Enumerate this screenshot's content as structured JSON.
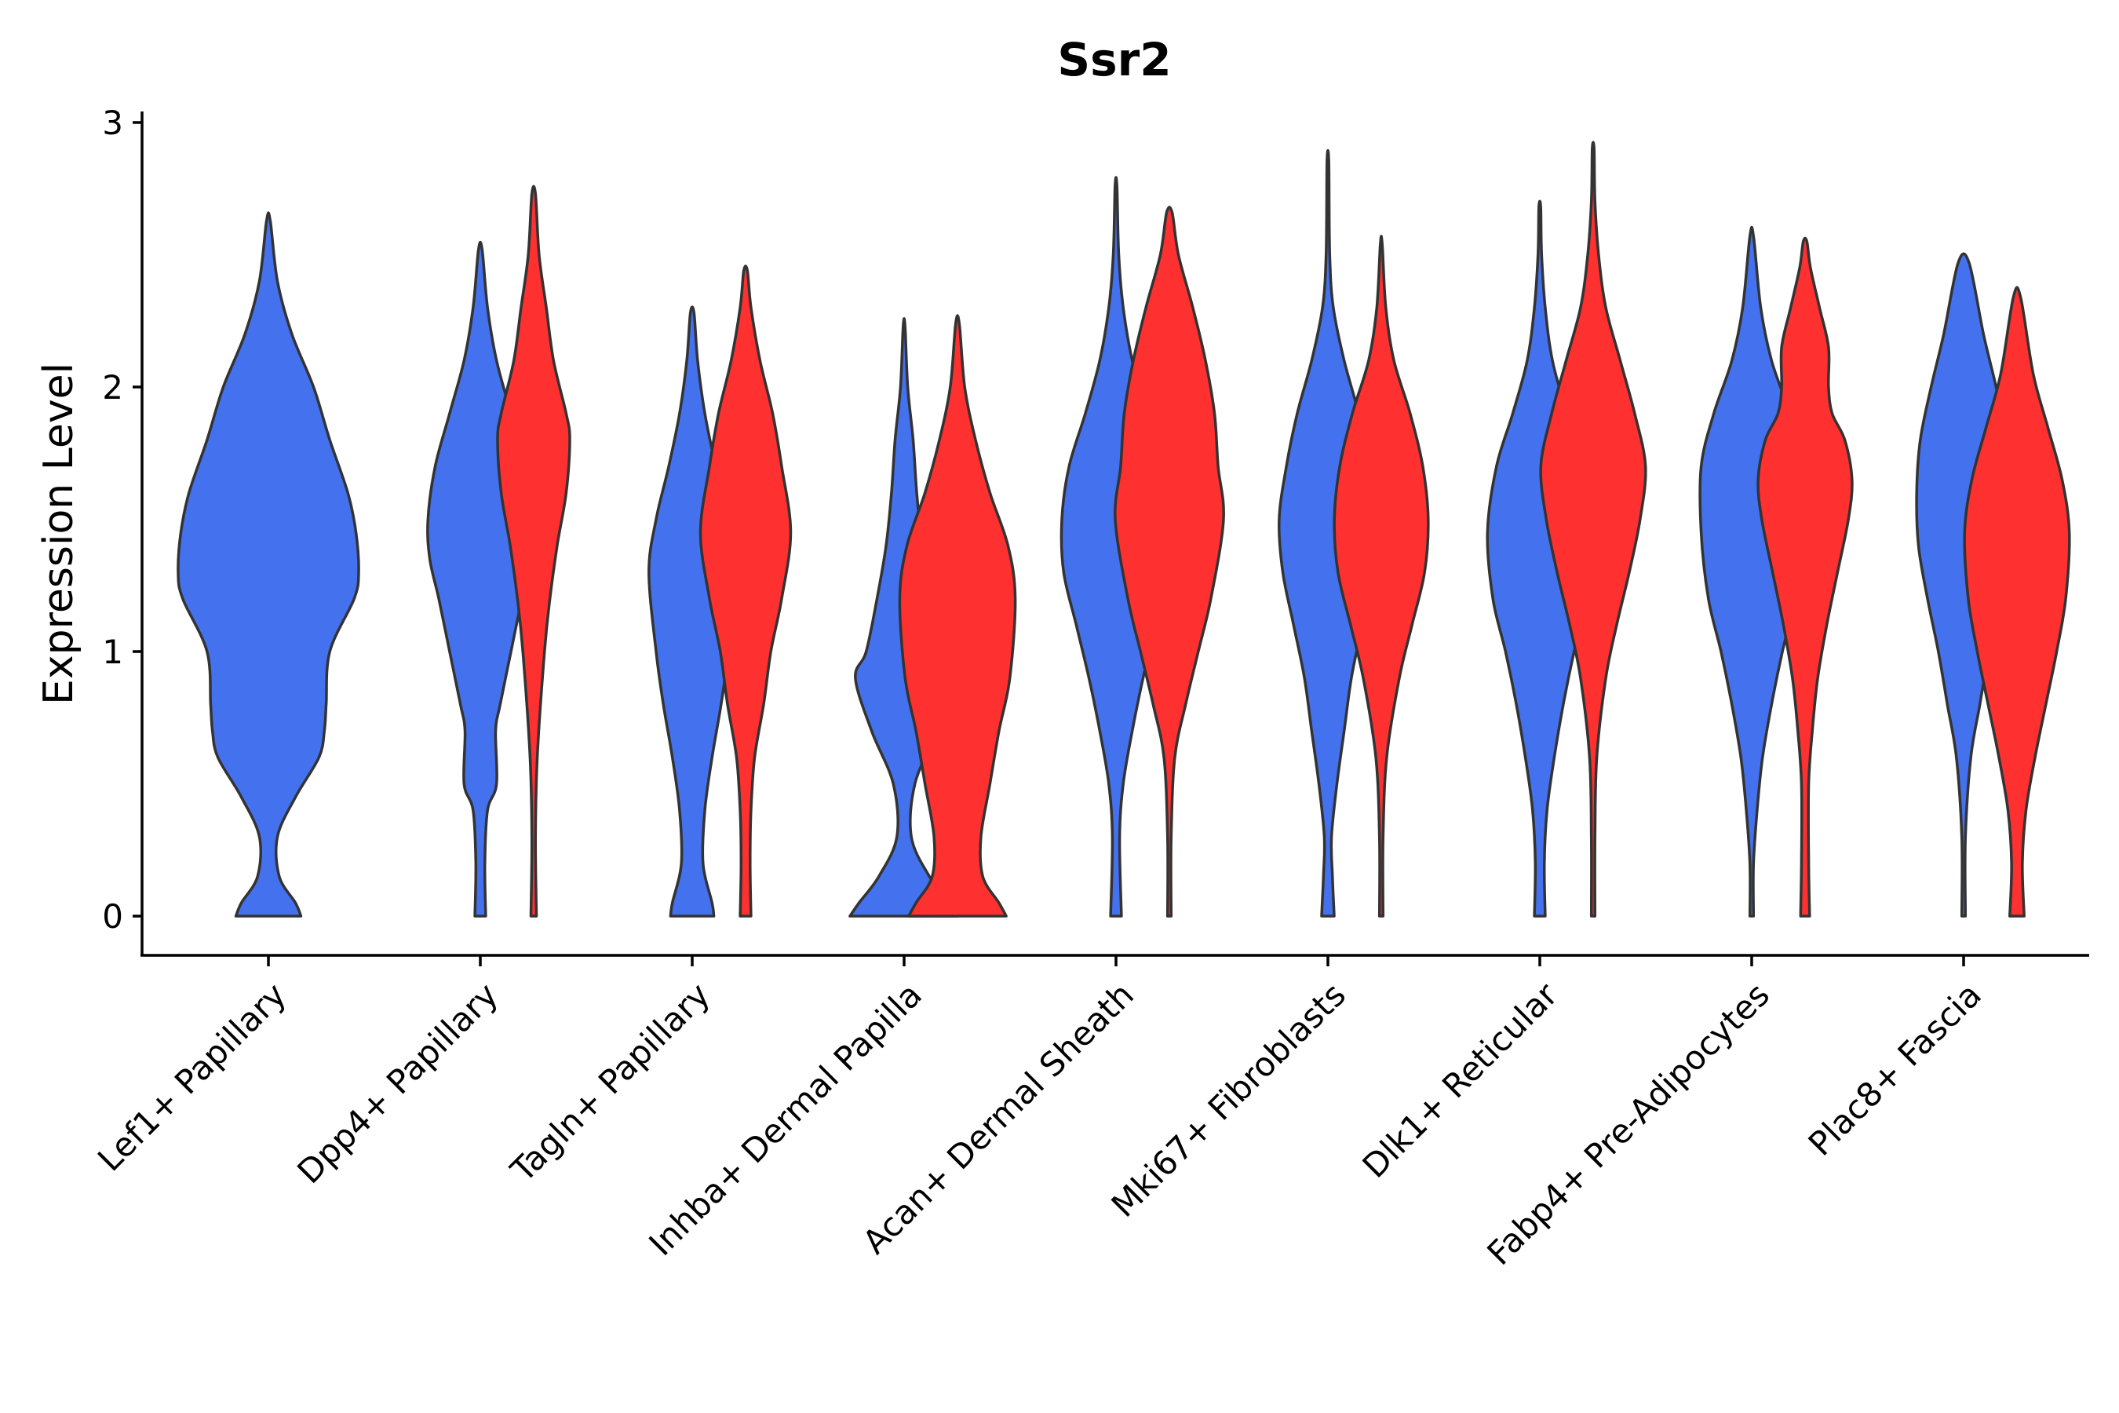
{
  "chart_data": {
    "type": "violin",
    "title": "Ssr2",
    "xlabel": "",
    "ylabel": "Expression Level",
    "ylim": [
      -0.15,
      3.05
    ],
    "yticks": [
      0,
      1,
      2,
      3
    ],
    "colors": {
      "group_a": "#4472EE",
      "group_b": "#FF3030"
    },
    "categories": [
      "Lef1+ Papillary",
      "Dpp4+ Papillary",
      "Tagln+ Papillary",
      "Inhba+ Dermal Papilla",
      "Acan+ Dermal Sheath",
      "Mki67+ Fibroblasts",
      "Dlk1+ Reticular",
      "Fabp4+ Pre-Adipocytes",
      "Plac8+ Fascia"
    ],
    "violins": [
      {
        "category_index": 0,
        "group": "group_a",
        "ymax": 2.63,
        "profile": [
          [
            0,
            0.36
          ],
          [
            0.05,
            0.3
          ],
          [
            0.15,
            0.12
          ],
          [
            0.3,
            0.1
          ],
          [
            0.45,
            0.3
          ],
          [
            0.6,
            0.56
          ],
          [
            0.7,
            0.62
          ],
          [
            0.8,
            0.64
          ],
          [
            1.0,
            0.68
          ],
          [
            1.2,
            0.95
          ],
          [
            1.3,
            1.0
          ],
          [
            1.45,
            0.97
          ],
          [
            1.6,
            0.88
          ],
          [
            1.8,
            0.68
          ],
          [
            2.0,
            0.5
          ],
          [
            2.2,
            0.26
          ],
          [
            2.4,
            0.1
          ],
          [
            2.63,
            0.02
          ]
        ]
      },
      {
        "category_index": 1,
        "group": "group_a",
        "ymax": 2.52,
        "profile": [
          [
            0,
            0.06
          ],
          [
            0.2,
            0.05
          ],
          [
            0.4,
            0.08
          ],
          [
            0.5,
            0.18
          ],
          [
            0.7,
            0.17
          ],
          [
            0.8,
            0.22
          ],
          [
            1.0,
            0.34
          ],
          [
            1.2,
            0.46
          ],
          [
            1.35,
            0.56
          ],
          [
            1.5,
            0.58
          ],
          [
            1.7,
            0.5
          ],
          [
            1.9,
            0.34
          ],
          [
            2.1,
            0.18
          ],
          [
            2.3,
            0.08
          ],
          [
            2.52,
            0.02
          ]
        ]
      },
      {
        "category_index": 1,
        "group": "group_b",
        "ymax": 2.73,
        "profile": [
          [
            0,
            0.03
          ],
          [
            0.3,
            0.02
          ],
          [
            0.6,
            0.04
          ],
          [
            1.0,
            0.12
          ],
          [
            1.2,
            0.18
          ],
          [
            1.4,
            0.26
          ],
          [
            1.6,
            0.36
          ],
          [
            1.8,
            0.4
          ],
          [
            1.9,
            0.36
          ],
          [
            2.1,
            0.22
          ],
          [
            2.3,
            0.14
          ],
          [
            2.5,
            0.06
          ],
          [
            2.73,
            0.02
          ]
        ]
      },
      {
        "category_index": 2,
        "group": "group_a",
        "ymax": 2.28,
        "profile": [
          [
            0,
            0.24
          ],
          [
            0.05,
            0.22
          ],
          [
            0.2,
            0.12
          ],
          [
            0.4,
            0.14
          ],
          [
            0.6,
            0.22
          ],
          [
            0.8,
            0.32
          ],
          [
            1.0,
            0.4
          ],
          [
            1.3,
            0.48
          ],
          [
            1.5,
            0.4
          ],
          [
            1.7,
            0.26
          ],
          [
            1.9,
            0.14
          ],
          [
            2.1,
            0.06
          ],
          [
            2.28,
            0.02
          ]
        ]
      },
      {
        "category_index": 2,
        "group": "group_b",
        "ymax": 2.44,
        "profile": [
          [
            0,
            0.06
          ],
          [
            0.2,
            0.05
          ],
          [
            0.4,
            0.06
          ],
          [
            0.6,
            0.1
          ],
          [
            0.8,
            0.2
          ],
          [
            1.0,
            0.28
          ],
          [
            1.2,
            0.4
          ],
          [
            1.45,
            0.5
          ],
          [
            1.7,
            0.4
          ],
          [
            1.9,
            0.3
          ],
          [
            2.1,
            0.16
          ],
          [
            2.3,
            0.06
          ],
          [
            2.44,
            0.02
          ]
        ]
      },
      {
        "category_index": 3,
        "group": "group_a",
        "ymax": 2.23,
        "profile": [
          [
            0,
            0.6
          ],
          [
            0.05,
            0.5
          ],
          [
            0.15,
            0.28
          ],
          [
            0.3,
            0.08
          ],
          [
            0.5,
            0.12
          ],
          [
            0.7,
            0.36
          ],
          [
            0.9,
            0.54
          ],
          [
            1.0,
            0.42
          ],
          [
            1.2,
            0.3
          ],
          [
            1.4,
            0.2
          ],
          [
            1.6,
            0.14
          ],
          [
            1.8,
            0.1
          ],
          [
            2.0,
            0.04
          ],
          [
            2.23,
            0.01
          ]
        ]
      },
      {
        "category_index": 3,
        "group": "group_b",
        "ymax": 2.24,
        "profile": [
          [
            0,
            0.54
          ],
          [
            0.05,
            0.46
          ],
          [
            0.15,
            0.28
          ],
          [
            0.3,
            0.26
          ],
          [
            0.5,
            0.36
          ],
          [
            0.7,
            0.46
          ],
          [
            0.9,
            0.58
          ],
          [
            1.2,
            0.64
          ],
          [
            1.4,
            0.56
          ],
          [
            1.6,
            0.36
          ],
          [
            1.8,
            0.2
          ],
          [
            2.0,
            0.08
          ],
          [
            2.24,
            0.02
          ]
        ]
      },
      {
        "category_index": 4,
        "group": "group_a",
        "ymax": 2.76,
        "profile": [
          [
            0,
            0.06
          ],
          [
            0.3,
            0.04
          ],
          [
            0.5,
            0.08
          ],
          [
            0.7,
            0.18
          ],
          [
            0.9,
            0.3
          ],
          [
            1.1,
            0.44
          ],
          [
            1.3,
            0.58
          ],
          [
            1.5,
            0.6
          ],
          [
            1.7,
            0.52
          ],
          [
            1.9,
            0.34
          ],
          [
            2.1,
            0.18
          ],
          [
            2.3,
            0.08
          ],
          [
            2.5,
            0.03
          ],
          [
            2.76,
            0.01
          ]
        ]
      },
      {
        "category_index": 4,
        "group": "group_b",
        "ymax": 2.66,
        "profile": [
          [
            0,
            0.02
          ],
          [
            0.3,
            0.02
          ],
          [
            0.6,
            0.06
          ],
          [
            0.8,
            0.18
          ],
          [
            1.0,
            0.32
          ],
          [
            1.2,
            0.46
          ],
          [
            1.5,
            0.6
          ],
          [
            1.7,
            0.54
          ],
          [
            1.9,
            0.5
          ],
          [
            2.1,
            0.4
          ],
          [
            2.3,
            0.26
          ],
          [
            2.5,
            0.1
          ],
          [
            2.66,
            0.03
          ]
        ]
      },
      {
        "category_index": 5,
        "group": "group_a",
        "ymax": 2.85,
        "profile": [
          [
            0,
            0.07
          ],
          [
            0.15,
            0.05
          ],
          [
            0.3,
            0.04
          ],
          [
            0.5,
            0.1
          ],
          [
            0.7,
            0.18
          ],
          [
            0.9,
            0.26
          ],
          [
            1.1,
            0.38
          ],
          [
            1.3,
            0.5
          ],
          [
            1.5,
            0.54
          ],
          [
            1.7,
            0.46
          ],
          [
            1.9,
            0.34
          ],
          [
            2.1,
            0.18
          ],
          [
            2.3,
            0.06
          ],
          [
            2.5,
            0.02
          ],
          [
            2.85,
            0.01
          ]
        ]
      },
      {
        "category_index": 5,
        "group": "group_b",
        "ymax": 2.54,
        "profile": [
          [
            0,
            0.02
          ],
          [
            0.3,
            0.02
          ],
          [
            0.6,
            0.06
          ],
          [
            0.9,
            0.2
          ],
          [
            1.1,
            0.34
          ],
          [
            1.3,
            0.48
          ],
          [
            1.5,
            0.52
          ],
          [
            1.7,
            0.46
          ],
          [
            1.9,
            0.32
          ],
          [
            2.1,
            0.14
          ],
          [
            2.3,
            0.05
          ],
          [
            2.54,
            0.01
          ]
        ]
      },
      {
        "category_index": 6,
        "group": "group_a",
        "ymax": 2.68,
        "profile": [
          [
            0,
            0.06
          ],
          [
            0.2,
            0.05
          ],
          [
            0.4,
            0.08
          ],
          [
            0.6,
            0.16
          ],
          [
            0.8,
            0.26
          ],
          [
            1.0,
            0.38
          ],
          [
            1.2,
            0.52
          ],
          [
            1.45,
            0.58
          ],
          [
            1.7,
            0.48
          ],
          [
            1.9,
            0.3
          ],
          [
            2.1,
            0.14
          ],
          [
            2.3,
            0.06
          ],
          [
            2.5,
            0.02
          ],
          [
            2.68,
            0.01
          ]
        ]
      },
      {
        "category_index": 6,
        "group": "group_b",
        "ymax": 2.9,
        "profile": [
          [
            0,
            0.02
          ],
          [
            0.3,
            0.02
          ],
          [
            0.6,
            0.04
          ],
          [
            0.9,
            0.14
          ],
          [
            1.1,
            0.26
          ],
          [
            1.3,
            0.4
          ],
          [
            1.5,
            0.52
          ],
          [
            1.7,
            0.58
          ],
          [
            1.9,
            0.46
          ],
          [
            2.1,
            0.3
          ],
          [
            2.3,
            0.14
          ],
          [
            2.5,
            0.06
          ],
          [
            2.7,
            0.02
          ],
          [
            2.9,
            0.01
          ]
        ]
      },
      {
        "category_index": 7,
        "group": "group_a",
        "ymax": 2.57,
        "profile": [
          [
            0,
            0.02
          ],
          [
            0.2,
            0.02
          ],
          [
            0.4,
            0.06
          ],
          [
            0.6,
            0.12
          ],
          [
            0.8,
            0.22
          ],
          [
            1.0,
            0.34
          ],
          [
            1.2,
            0.48
          ],
          [
            1.45,
            0.56
          ],
          [
            1.7,
            0.56
          ],
          [
            1.9,
            0.42
          ],
          [
            2.1,
            0.22
          ],
          [
            2.3,
            0.1
          ],
          [
            2.57,
            0.02
          ]
        ]
      },
      {
        "category_index": 7,
        "group": "group_b",
        "ymax": 2.55,
        "profile": [
          [
            0,
            0.05
          ],
          [
            0.2,
            0.04
          ],
          [
            0.5,
            0.04
          ],
          [
            0.7,
            0.08
          ],
          [
            0.9,
            0.14
          ],
          [
            1.1,
            0.24
          ],
          [
            1.3,
            0.36
          ],
          [
            1.5,
            0.48
          ],
          [
            1.65,
            0.52
          ],
          [
            1.8,
            0.44
          ],
          [
            1.9,
            0.3
          ],
          [
            2.0,
            0.26
          ],
          [
            2.15,
            0.26
          ],
          [
            2.3,
            0.16
          ],
          [
            2.45,
            0.06
          ],
          [
            2.55,
            0.02
          ]
        ]
      },
      {
        "category_index": 8,
        "group": "group_a",
        "ymax": 2.47,
        "profile": [
          [
            0,
            0.02
          ],
          [
            0.3,
            0.02
          ],
          [
            0.6,
            0.08
          ],
          [
            0.8,
            0.18
          ],
          [
            1.0,
            0.28
          ],
          [
            1.2,
            0.4
          ],
          [
            1.4,
            0.5
          ],
          [
            1.6,
            0.52
          ],
          [
            1.8,
            0.48
          ],
          [
            2.0,
            0.36
          ],
          [
            2.2,
            0.22
          ],
          [
            2.47,
            0.06
          ]
        ]
      },
      {
        "category_index": 8,
        "group": "group_b",
        "ymax": 2.34,
        "profile": [
          [
            0,
            0.08
          ],
          [
            0.2,
            0.06
          ],
          [
            0.4,
            0.1
          ],
          [
            0.6,
            0.2
          ],
          [
            0.8,
            0.32
          ],
          [
            1.0,
            0.44
          ],
          [
            1.2,
            0.54
          ],
          [
            1.45,
            0.58
          ],
          [
            1.65,
            0.5
          ],
          [
            1.85,
            0.34
          ],
          [
            2.05,
            0.18
          ],
          [
            2.34,
            0.04
          ]
        ]
      }
    ]
  }
}
